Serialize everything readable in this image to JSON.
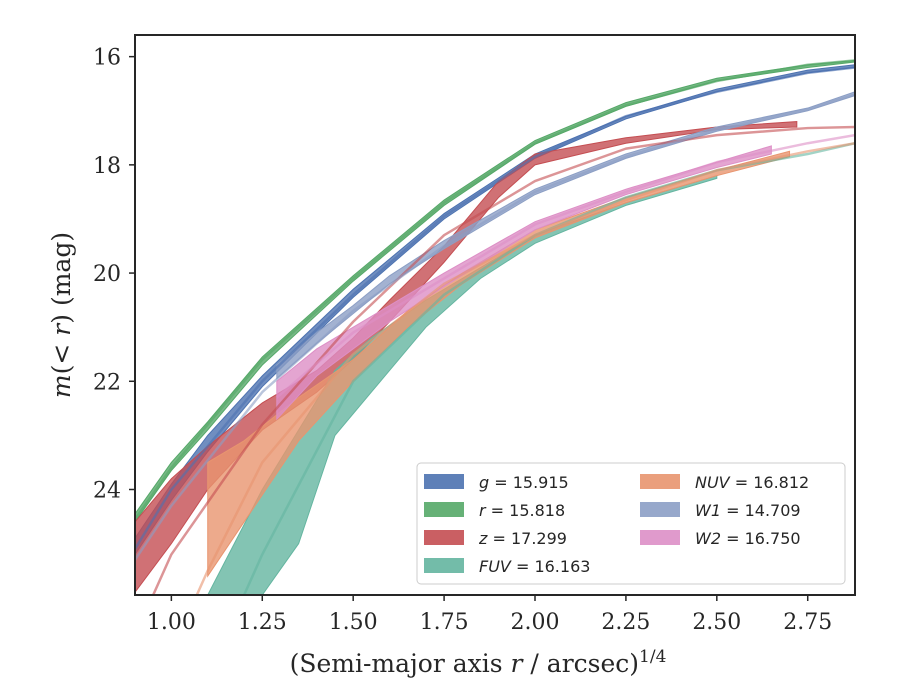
{
  "chart_data": {
    "type": "line",
    "xlabel": "(Semi-major axis r / arcsec)",
    "xlabel_parts": {
      "pre": "(Semi-major axis ",
      "var": "r",
      "post": " / arcsec)",
      "sup": "1/4"
    },
    "ylabel": "m(< r) (mag)",
    "ylabel_parts": {
      "pre": "m(",
      "var": "< r",
      "post": ") (mag)"
    },
    "xlim": [
      0.9,
      2.88
    ],
    "ylim": [
      25.95,
      15.6
    ],
    "y_inverted": true,
    "xticks": [
      1.0,
      1.25,
      1.5,
      1.75,
      2.0,
      2.25,
      2.5,
      2.75
    ],
    "xtick_labels": [
      "1.00",
      "1.25",
      "1.50",
      "1.75",
      "2.00",
      "2.25",
      "2.50",
      "2.75"
    ],
    "yticks": [
      16,
      18,
      20,
      22,
      24
    ],
    "ytick_labels": [
      "16",
      "18",
      "20",
      "22",
      "24"
    ],
    "grid": false,
    "legend_position": "lower-right",
    "series": [
      {
        "name": "g = 15.915",
        "sym": "g",
        "val": "15.915",
        "color": "#4c72b0",
        "band_x": [
          0.9,
          1.0,
          1.1,
          1.25,
          1.5,
          1.75,
          2.0,
          2.25,
          2.5,
          2.75,
          2.88
        ],
        "band_lo": [
          24.9,
          23.9,
          23.0,
          21.9,
          20.3,
          18.9,
          17.8,
          17.1,
          16.6,
          16.25,
          16.15
        ],
        "band_hi": [
          25.2,
          24.2,
          23.3,
          22.1,
          20.45,
          19.0,
          17.88,
          17.15,
          16.65,
          16.3,
          16.2
        ],
        "model_x": [
          0.9,
          1.0,
          1.25,
          1.5,
          1.75,
          2.0,
          2.25,
          2.5,
          2.75,
          2.88
        ],
        "model_y": [
          25.1,
          24.0,
          22.0,
          20.4,
          18.95,
          17.85,
          17.1,
          16.65,
          16.3,
          16.2
        ]
      },
      {
        "name": "r = 15.818",
        "sym": "r",
        "val": "15.818",
        "color": "#55a868",
        "band_x": [
          0.9,
          1.0,
          1.1,
          1.25,
          1.5,
          1.75,
          2.0,
          2.25,
          2.5,
          2.75,
          2.88
        ],
        "band_lo": [
          24.45,
          23.5,
          22.75,
          21.55,
          20.05,
          18.65,
          17.55,
          16.85,
          16.4,
          16.15,
          16.07
        ],
        "band_hi": [
          24.6,
          23.65,
          22.9,
          21.7,
          20.15,
          18.75,
          17.62,
          16.92,
          16.45,
          16.2,
          16.1
        ],
        "model_x": [
          0.9,
          1.0,
          1.25,
          1.5,
          1.75,
          2.0,
          2.25,
          2.5,
          2.75,
          2.88
        ],
        "model_y": [
          24.55,
          23.6,
          21.6,
          20.1,
          18.7,
          17.6,
          16.9,
          16.45,
          16.15,
          16.07
        ]
      },
      {
        "name": "z = 17.299",
        "sym": "z",
        "val": "17.299",
        "color": "#c44e52",
        "band_x": [
          0.9,
          1.0,
          1.1,
          1.25,
          1.4,
          1.5,
          1.6,
          1.75,
          1.9,
          2.0,
          2.25,
          2.5,
          2.72
        ],
        "band_lo": [
          24.6,
          23.8,
          23.2,
          22.4,
          21.8,
          21.2,
          20.5,
          19.5,
          18.3,
          17.8,
          17.5,
          17.3,
          17.2
        ],
        "band_hi": [
          25.9,
          25.0,
          24.0,
          22.9,
          22.2,
          21.6,
          20.9,
          19.8,
          18.6,
          18.0,
          17.6,
          17.35,
          17.3
        ],
        "model_x": [
          0.95,
          1.0,
          1.25,
          1.5,
          1.75,
          2.0,
          2.25,
          2.5,
          2.75,
          2.88
        ],
        "model_y": [
          25.95,
          25.2,
          22.8,
          20.9,
          19.3,
          18.3,
          17.7,
          17.45,
          17.32,
          17.3
        ]
      },
      {
        "name": "FUV = 16.163",
        "sym": "FUV",
        "val": "16.163",
        "color": "#64b5a0",
        "band_x": [
          1.1,
          1.25,
          1.35,
          1.45,
          1.55,
          1.7,
          1.85,
          2.0,
          2.25,
          2.5
        ],
        "band_lo": [
          25.95,
          24.0,
          22.9,
          21.8,
          21.2,
          20.5,
          19.9,
          19.3,
          18.7,
          18.2
        ],
        "band_hi": [
          25.95,
          25.95,
          25.0,
          23.0,
          22.2,
          21.0,
          20.1,
          19.45,
          18.75,
          18.25
        ],
        "model_x": [
          1.2,
          1.25,
          1.5,
          1.75,
          2.0,
          2.25,
          2.5,
          2.75,
          2.88
        ],
        "model_y": [
          25.95,
          25.2,
          22.0,
          20.4,
          19.3,
          18.6,
          18.1,
          17.8,
          17.6
        ]
      },
      {
        "name": "NUV = 16.812",
        "sym": "NUV",
        "val": "16.812",
        "color": "#e8956f",
        "band_x": [
          1.1,
          1.2,
          1.35,
          1.5,
          1.65,
          1.8,
          2.0,
          2.25,
          2.5,
          2.7
        ],
        "band_lo": [
          23.5,
          23.1,
          22.3,
          21.6,
          20.7,
          20.0,
          19.2,
          18.6,
          18.1,
          17.75
        ],
        "band_hi": [
          25.6,
          24.6,
          23.1,
          22.0,
          21.0,
          20.2,
          19.35,
          18.7,
          18.2,
          17.85
        ],
        "model_x": [
          1.07,
          1.1,
          1.25,
          1.5,
          1.75,
          2.0,
          2.25,
          2.5,
          2.75,
          2.88
        ],
        "model_y": [
          25.95,
          25.5,
          23.5,
          21.5,
          20.2,
          19.3,
          18.65,
          18.1,
          17.75,
          17.6
        ]
      },
      {
        "name": "W1 = 14.709",
        "sym": "W1",
        "val": "14.709",
        "color": "#8c9fc5",
        "band_x": [
          1.29,
          1.4,
          1.5,
          1.6,
          1.75,
          2.0,
          2.25,
          2.5,
          2.75,
          2.88
        ],
        "band_lo": [
          21.7,
          21.1,
          20.6,
          20.05,
          19.4,
          18.45,
          17.8,
          17.3,
          16.95,
          16.65
        ],
        "band_hi": [
          21.95,
          21.3,
          20.75,
          20.2,
          19.55,
          18.55,
          17.88,
          17.38,
          17.0,
          16.72
        ],
        "model_x": [
          0.9,
          1.0,
          1.25,
          1.5,
          1.75,
          2.0,
          2.25,
          2.5,
          2.75,
          2.88
        ],
        "model_y": [
          25.3,
          24.3,
          22.2,
          20.7,
          19.5,
          18.5,
          17.85,
          17.35,
          16.97,
          16.7
        ]
      },
      {
        "name": "W2 = 16.750",
        "sym": "W2",
        "val": "16.750",
        "color": "#dd8fc6",
        "band_x": [
          1.29,
          1.4,
          1.5,
          1.6,
          1.75,
          2.0,
          2.25,
          2.5,
          2.65
        ],
        "band_lo": [
          22.0,
          21.4,
          21.0,
          20.6,
          20.0,
          19.05,
          18.45,
          17.95,
          17.65
        ],
        "band_hi": [
          22.7,
          21.9,
          21.4,
          20.9,
          20.25,
          19.2,
          18.55,
          18.05,
          17.8
        ],
        "model_x": [
          1.29,
          1.5,
          1.75,
          2.0,
          2.25,
          2.5,
          2.75,
          2.88
        ],
        "model_y": [
          22.3,
          21.1,
          20.1,
          19.1,
          18.5,
          17.95,
          17.6,
          17.45
        ]
      }
    ]
  }
}
